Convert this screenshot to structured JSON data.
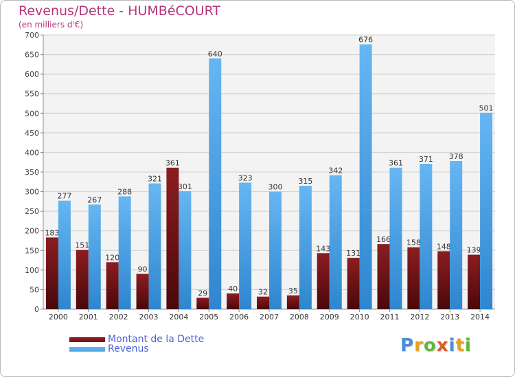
{
  "chart_data": {
    "type": "bar",
    "title": "Revenus/Dette - HUMBéCOURT",
    "subtitle": "(en milliers d'€)",
    "xlabel": "",
    "ylabel": "",
    "ylim": [
      0,
      700
    ],
    "yticks": [
      0,
      50,
      100,
      150,
      200,
      250,
      300,
      350,
      400,
      450,
      500,
      550,
      600,
      650,
      700
    ],
    "grid": true,
    "categories": [
      "2000",
      "2001",
      "2002",
      "2003",
      "2004",
      "2005",
      "2006",
      "2007",
      "2008",
      "2009",
      "2010",
      "2011",
      "2012",
      "2013",
      "2014"
    ],
    "series": [
      {
        "name": "Montant de la Dette",
        "color": "#7a1416",
        "values": [
          183,
          151,
          120,
          90,
          361,
          29,
          40,
          32,
          35,
          143,
          131,
          166,
          158,
          148,
          139
        ]
      },
      {
        "name": "Revenus",
        "color": "#4ea4e6",
        "values": [
          277,
          267,
          288,
          321,
          301,
          640,
          323,
          300,
          315,
          342,
          676,
          361,
          371,
          378,
          501
        ]
      }
    ],
    "legend": "bottom-left"
  },
  "logo": {
    "letters": [
      "P",
      "r",
      "o",
      "x",
      "i",
      "t",
      "i"
    ],
    "colors": [
      "#4a8fd8",
      "#e8a020",
      "#5fb83a",
      "#e05a20",
      "#4a8fd8",
      "#e8a020",
      "#5fb83a"
    ]
  }
}
